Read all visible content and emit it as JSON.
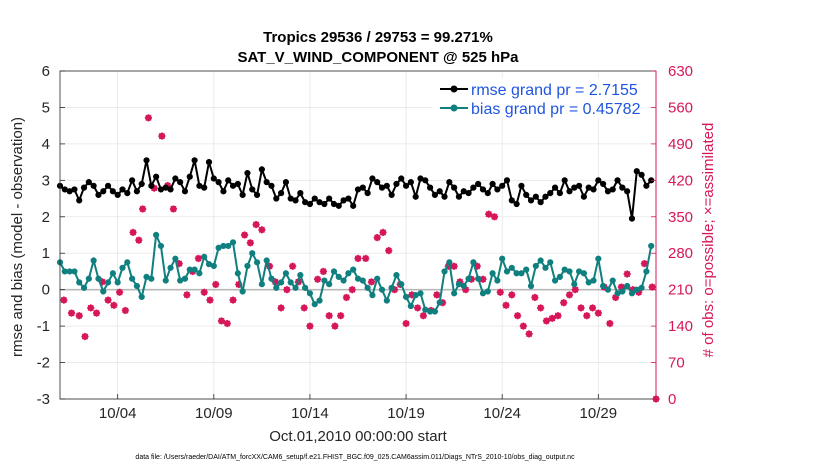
{
  "chart_data": {
    "type": "line",
    "title": "Tropics 29536 / 29753 = 99.271%",
    "subtitle": "SAT_V_WIND_COMPONENT @ 525 hPa",
    "xlabel": "Oct.01,2010 00:00:00 start",
    "ylabel": "rmse and bias (model - observation)",
    "ylabel_right": "# of obs: o=possible; ×=assimilated",
    "footer": "data file: /Users/raeder/DAI/ATM_forcXX/CAM6_setup/f.e21.FHIST_BGC.f09_025.CAM6assim.011/Diags_NTrS_2010-10/obs_diag_output.nc",
    "xlim": [
      1.0,
      32.0
    ],
    "ylim": [
      -3,
      6
    ],
    "ylim_right": [
      0,
      630
    ],
    "x_ticks": [
      4,
      9,
      14,
      19,
      24,
      29
    ],
    "x_tick_labels": [
      "10/04",
      "10/09",
      "10/14",
      "10/19",
      "10/24",
      "10/29"
    ],
    "y_ticks": [
      -3,
      -2,
      -1,
      0,
      1,
      2,
      3,
      4,
      5,
      6
    ],
    "y_tick_labels": [
      "-3",
      "-2",
      "-1",
      "0",
      "1",
      "2",
      "3",
      "4",
      "5",
      "6"
    ],
    "y_right_ticks": [
      0,
      70,
      140,
      210,
      280,
      350,
      420,
      490,
      560,
      630
    ],
    "y_right_tick_labels": [
      "0",
      "70",
      "140",
      "210",
      "280",
      "350",
      "420",
      "490",
      "560",
      "630"
    ],
    "grid": true,
    "legend": {
      "position": "top-right",
      "entries": [
        "rmse grand pr = 2.7155",
        "bias grand pr = 0.45782"
      ]
    },
    "colors": {
      "rmse": "#000000",
      "bias": "#0f7f7f",
      "obs": "#d6175a",
      "zero_line": "#b8b8b8",
      "grid": "#e6e6e6",
      "legend_text": "#1f55e0"
    },
    "x": [
      1.0,
      1.25,
      1.5,
      1.75,
      2.0,
      2.25,
      2.5,
      2.75,
      3.0,
      3.25,
      3.5,
      3.75,
      4.0,
      4.25,
      4.5,
      4.75,
      5.0,
      5.25,
      5.5,
      5.75,
      6.0,
      6.25,
      6.5,
      6.75,
      7.0,
      7.25,
      7.5,
      7.75,
      8.0,
      8.25,
      8.5,
      8.75,
      9.0,
      9.25,
      9.5,
      9.75,
      10.0,
      10.25,
      10.5,
      10.75,
      11.0,
      11.25,
      11.5,
      11.75,
      12.0,
      12.25,
      12.5,
      12.75,
      13.0,
      13.25,
      13.5,
      13.75,
      14.0,
      14.25,
      14.5,
      14.75,
      15.0,
      15.25,
      15.5,
      15.75,
      16.0,
      16.25,
      16.5,
      16.75,
      17.0,
      17.25,
      17.5,
      17.75,
      18.0,
      18.25,
      18.5,
      18.75,
      19.0,
      19.25,
      19.5,
      19.75,
      20.0,
      20.25,
      20.5,
      20.75,
      21.0,
      21.25,
      21.5,
      21.75,
      22.0,
      22.25,
      22.5,
      22.75,
      23.0,
      23.25,
      23.5,
      23.75,
      24.0,
      24.25,
      24.5,
      24.75,
      25.0,
      25.25,
      25.5,
      25.75,
      26.0,
      26.25,
      26.5,
      26.75,
      27.0,
      27.25,
      27.5,
      27.75,
      28.0,
      28.25,
      28.5,
      28.75,
      29.0,
      29.25,
      29.5,
      29.75,
      30.0,
      30.25,
      30.5,
      30.75,
      31.0,
      31.25,
      31.5,
      31.75
    ],
    "series": [
      {
        "name": "rmse",
        "marker": "filled-circle",
        "values": [
          2.85,
          2.75,
          2.7,
          2.75,
          2.45,
          2.8,
          2.95,
          2.85,
          2.6,
          2.7,
          2.85,
          2.7,
          2.6,
          2.75,
          2.65,
          3.0,
          2.7,
          2.9,
          3.55,
          2.85,
          3.1,
          2.75,
          2.8,
          2.75,
          3.05,
          2.95,
          2.7,
          3.1,
          3.55,
          2.85,
          2.8,
          3.5,
          3.05,
          2.95,
          2.7,
          3.0,
          2.85,
          2.9,
          2.6,
          3.2,
          2.75,
          2.6,
          3.3,
          2.95,
          2.85,
          2.5,
          2.65,
          2.95,
          2.5,
          2.45,
          2.65,
          2.4,
          2.35,
          2.5,
          2.4,
          2.35,
          2.5,
          2.35,
          2.3,
          2.45,
          2.5,
          2.3,
          2.75,
          2.8,
          2.65,
          3.05,
          2.95,
          2.8,
          2.85,
          2.6,
          2.9,
          3.05,
          2.85,
          2.95,
          2.55,
          3.05,
          3.0,
          2.8,
          2.6,
          2.7,
          2.55,
          2.95,
          2.8,
          2.55,
          2.7,
          2.65,
          2.8,
          2.9,
          2.75,
          2.65,
          2.9,
          2.75,
          2.85,
          3.0,
          2.45,
          2.35,
          2.85,
          2.6,
          2.45,
          2.55,
          2.4,
          2.55,
          2.65,
          2.8,
          2.65,
          3.0,
          2.7,
          2.8,
          2.85,
          2.55,
          2.8,
          2.75,
          3.0,
          2.9,
          2.7,
          2.75,
          3.0,
          2.8,
          2.7,
          1.95,
          3.25,
          3.15,
          2.85,
          3.0
        ],
        "note": "subset of points read approximately from the plot"
      },
      {
        "name": "bias",
        "marker": "filled-circle",
        "values": [
          0.75,
          0.5,
          0.5,
          0.5,
          0.2,
          0.05,
          0.3,
          0.8,
          0.3,
          -0.05,
          0.2,
          0.45,
          0.2,
          0.6,
          0.75,
          0.3,
          0.1,
          -0.2,
          0.35,
          0.3,
          1.5,
          1.2,
          0.25,
          0.6,
          0.85,
          0.25,
          0.3,
          0.55,
          0.55,
          0.45,
          0.9,
          0.7,
          0.65,
          1.15,
          1.2,
          1.2,
          1.3,
          0.45,
          -0.05,
          0.65,
          1.0,
          0.75,
          0.15,
          0.8,
          0.3,
          0.05,
          0.2,
          0.45,
          0.2,
          0.05,
          0.4,
          0.05,
          -0.1,
          -0.4,
          -0.3,
          0.25,
          0.15,
          0.5,
          0.35,
          0.25,
          0.45,
          0.55,
          0.3,
          0.25,
          0.05,
          -0.15,
          0.3,
          0.0,
          -0.3,
          0.05,
          0.4,
          0.15,
          -0.2,
          -0.45,
          -0.15,
          -0.1,
          -0.55,
          -0.6,
          -0.6,
          -0.35,
          0.5,
          0.75,
          -0.1,
          0.15,
          0.1,
          0.3,
          0.75,
          0.3,
          -0.1,
          -0.05,
          0.45,
          0.25,
          0.85,
          0.5,
          0.6,
          0.45,
          0.45,
          0.55,
          0.1,
          0.65,
          0.8,
          0.6,
          0.75,
          0.25,
          0.35,
          0.55,
          0.5,
          0.15,
          0.5,
          0.45,
          0.2,
          0.25,
          0.85,
          0.1,
          0.0,
          0.25,
          -0.1,
          -0.05,
          0.1,
          -0.1,
          0.0,
          0.05,
          0.5,
          1.2
        ],
        "note": "subset of points read approximately from the plot"
      }
    ],
    "obs_counts": {
      "name": "# of obs (possible / assimilated, markers overlap)",
      "marker": "star",
      "x": [
        1.2,
        1.6,
        2.0,
        2.3,
        2.6,
        2.9,
        3.2,
        3.5,
        3.8,
        4.1,
        4.4,
        4.8,
        5.1,
        5.3,
        5.6,
        5.9,
        6.3,
        6.6,
        6.9,
        7.2,
        7.6,
        7.9,
        8.2,
        8.5,
        8.8,
        9.1,
        9.4,
        9.7,
        10.0,
        10.3,
        10.6,
        10.9,
        11.2,
        11.5,
        11.9,
        12.2,
        12.5,
        12.8,
        13.1,
        13.4,
        13.7,
        14.0,
        14.4,
        14.7,
        15.0,
        15.3,
        15.6,
        15.9,
        16.2,
        16.5,
        16.9,
        17.2,
        17.5,
        17.8,
        18.1,
        18.4,
        18.7,
        19.0,
        19.3,
        19.6,
        19.9,
        20.3,
        20.6,
        20.9,
        21.2,
        21.5,
        21.8,
        22.1,
        22.4,
        22.7,
        23.0,
        23.3,
        23.6,
        23.9,
        24.2,
        24.5,
        24.8,
        25.1,
        25.4,
        25.7,
        26.0,
        26.3,
        26.6,
        26.9,
        27.2,
        27.5,
        27.8,
        28.1,
        28.4,
        28.7,
        29.0,
        29.3,
        29.6,
        29.9,
        30.2,
        30.5,
        30.8,
        31.1,
        31.4,
        31.8,
        32.0
      ],
      "values": [
        190,
        165,
        160,
        120,
        175,
        165,
        225,
        190,
        180,
        205,
        170,
        320,
        305,
        365,
        540,
        405,
        505,
        410,
        365,
        260,
        200,
        245,
        270,
        205,
        190,
        220,
        150,
        145,
        190,
        220,
        315,
        300,
        335,
        325,
        255,
        225,
        175,
        210,
        255,
        225,
        175,
        140,
        230,
        245,
        160,
        140,
        160,
        195,
        210,
        270,
        270,
        225,
        310,
        320,
        285,
        210,
        220,
        145,
        200,
        175,
        160,
        170,
        200,
        185,
        255,
        255,
        225,
        210,
        230,
        255,
        230,
        355,
        350,
        205,
        180,
        200,
        160,
        140,
        125,
        195,
        175,
        150,
        155,
        160,
        185,
        200,
        210,
        175,
        160,
        175,
        165,
        215,
        145,
        195,
        215,
        240,
        210,
        205,
        260,
        215,
        0
      ]
    }
  }
}
